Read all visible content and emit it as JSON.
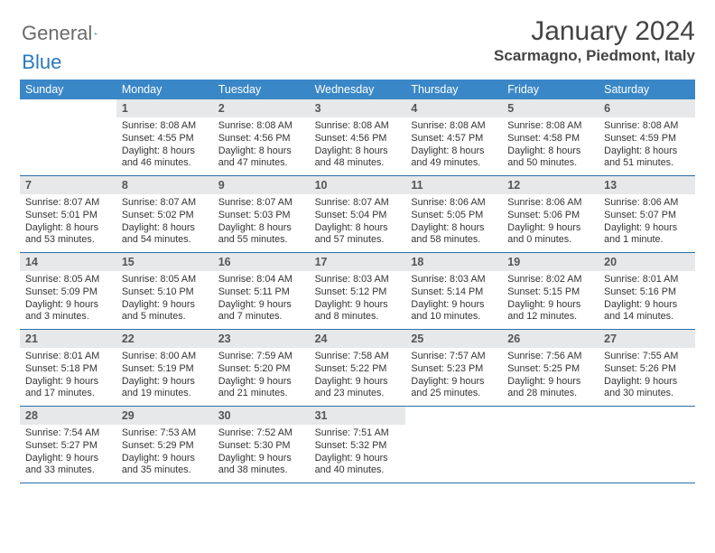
{
  "logo": {
    "textGray": "General",
    "textBlue": "Blue"
  },
  "title": "January 2024",
  "location": "Scarmagno, Piedmont, Italy",
  "colors": {
    "headerBlue": "#3a87c8",
    "borderBlue": "#2a6fa8",
    "dayBg": "#e7e8e9",
    "logoGray": "#6a6a6a",
    "logoBlue": "#2a7ab8"
  },
  "dayNames": [
    "Sunday",
    "Monday",
    "Tuesday",
    "Wednesday",
    "Thursday",
    "Friday",
    "Saturday"
  ],
  "weeks": [
    [
      {
        "n": "",
        "sr": "",
        "ss": "",
        "dl1": "",
        "dl2": ""
      },
      {
        "n": "1",
        "sr": "Sunrise: 8:08 AM",
        "ss": "Sunset: 4:55 PM",
        "dl1": "Daylight: 8 hours",
        "dl2": "and 46 minutes."
      },
      {
        "n": "2",
        "sr": "Sunrise: 8:08 AM",
        "ss": "Sunset: 4:56 PM",
        "dl1": "Daylight: 8 hours",
        "dl2": "and 47 minutes."
      },
      {
        "n": "3",
        "sr": "Sunrise: 8:08 AM",
        "ss": "Sunset: 4:56 PM",
        "dl1": "Daylight: 8 hours",
        "dl2": "and 48 minutes."
      },
      {
        "n": "4",
        "sr": "Sunrise: 8:08 AM",
        "ss": "Sunset: 4:57 PM",
        "dl1": "Daylight: 8 hours",
        "dl2": "and 49 minutes."
      },
      {
        "n": "5",
        "sr": "Sunrise: 8:08 AM",
        "ss": "Sunset: 4:58 PM",
        "dl1": "Daylight: 8 hours",
        "dl2": "and 50 minutes."
      },
      {
        "n": "6",
        "sr": "Sunrise: 8:08 AM",
        "ss": "Sunset: 4:59 PM",
        "dl1": "Daylight: 8 hours",
        "dl2": "and 51 minutes."
      }
    ],
    [
      {
        "n": "7",
        "sr": "Sunrise: 8:07 AM",
        "ss": "Sunset: 5:01 PM",
        "dl1": "Daylight: 8 hours",
        "dl2": "and 53 minutes."
      },
      {
        "n": "8",
        "sr": "Sunrise: 8:07 AM",
        "ss": "Sunset: 5:02 PM",
        "dl1": "Daylight: 8 hours",
        "dl2": "and 54 minutes."
      },
      {
        "n": "9",
        "sr": "Sunrise: 8:07 AM",
        "ss": "Sunset: 5:03 PM",
        "dl1": "Daylight: 8 hours",
        "dl2": "and 55 minutes."
      },
      {
        "n": "10",
        "sr": "Sunrise: 8:07 AM",
        "ss": "Sunset: 5:04 PM",
        "dl1": "Daylight: 8 hours",
        "dl2": "and 57 minutes."
      },
      {
        "n": "11",
        "sr": "Sunrise: 8:06 AM",
        "ss": "Sunset: 5:05 PM",
        "dl1": "Daylight: 8 hours",
        "dl2": "and 58 minutes."
      },
      {
        "n": "12",
        "sr": "Sunrise: 8:06 AM",
        "ss": "Sunset: 5:06 PM",
        "dl1": "Daylight: 9 hours",
        "dl2": "and 0 minutes."
      },
      {
        "n": "13",
        "sr": "Sunrise: 8:06 AM",
        "ss": "Sunset: 5:07 PM",
        "dl1": "Daylight: 9 hours",
        "dl2": "and 1 minute."
      }
    ],
    [
      {
        "n": "14",
        "sr": "Sunrise: 8:05 AM",
        "ss": "Sunset: 5:09 PM",
        "dl1": "Daylight: 9 hours",
        "dl2": "and 3 minutes."
      },
      {
        "n": "15",
        "sr": "Sunrise: 8:05 AM",
        "ss": "Sunset: 5:10 PM",
        "dl1": "Daylight: 9 hours",
        "dl2": "and 5 minutes."
      },
      {
        "n": "16",
        "sr": "Sunrise: 8:04 AM",
        "ss": "Sunset: 5:11 PM",
        "dl1": "Daylight: 9 hours",
        "dl2": "and 7 minutes."
      },
      {
        "n": "17",
        "sr": "Sunrise: 8:03 AM",
        "ss": "Sunset: 5:12 PM",
        "dl1": "Daylight: 9 hours",
        "dl2": "and 8 minutes."
      },
      {
        "n": "18",
        "sr": "Sunrise: 8:03 AM",
        "ss": "Sunset: 5:14 PM",
        "dl1": "Daylight: 9 hours",
        "dl2": "and 10 minutes."
      },
      {
        "n": "19",
        "sr": "Sunrise: 8:02 AM",
        "ss": "Sunset: 5:15 PM",
        "dl1": "Daylight: 9 hours",
        "dl2": "and 12 minutes."
      },
      {
        "n": "20",
        "sr": "Sunrise: 8:01 AM",
        "ss": "Sunset: 5:16 PM",
        "dl1": "Daylight: 9 hours",
        "dl2": "and 14 minutes."
      }
    ],
    [
      {
        "n": "21",
        "sr": "Sunrise: 8:01 AM",
        "ss": "Sunset: 5:18 PM",
        "dl1": "Daylight: 9 hours",
        "dl2": "and 17 minutes."
      },
      {
        "n": "22",
        "sr": "Sunrise: 8:00 AM",
        "ss": "Sunset: 5:19 PM",
        "dl1": "Daylight: 9 hours",
        "dl2": "and 19 minutes."
      },
      {
        "n": "23",
        "sr": "Sunrise: 7:59 AM",
        "ss": "Sunset: 5:20 PM",
        "dl1": "Daylight: 9 hours",
        "dl2": "and 21 minutes."
      },
      {
        "n": "24",
        "sr": "Sunrise: 7:58 AM",
        "ss": "Sunset: 5:22 PM",
        "dl1": "Daylight: 9 hours",
        "dl2": "and 23 minutes."
      },
      {
        "n": "25",
        "sr": "Sunrise: 7:57 AM",
        "ss": "Sunset: 5:23 PM",
        "dl1": "Daylight: 9 hours",
        "dl2": "and 25 minutes."
      },
      {
        "n": "26",
        "sr": "Sunrise: 7:56 AM",
        "ss": "Sunset: 5:25 PM",
        "dl1": "Daylight: 9 hours",
        "dl2": "and 28 minutes."
      },
      {
        "n": "27",
        "sr": "Sunrise: 7:55 AM",
        "ss": "Sunset: 5:26 PM",
        "dl1": "Daylight: 9 hours",
        "dl2": "and 30 minutes."
      }
    ],
    [
      {
        "n": "28",
        "sr": "Sunrise: 7:54 AM",
        "ss": "Sunset: 5:27 PM",
        "dl1": "Daylight: 9 hours",
        "dl2": "and 33 minutes."
      },
      {
        "n": "29",
        "sr": "Sunrise: 7:53 AM",
        "ss": "Sunset: 5:29 PM",
        "dl1": "Daylight: 9 hours",
        "dl2": "and 35 minutes."
      },
      {
        "n": "30",
        "sr": "Sunrise: 7:52 AM",
        "ss": "Sunset: 5:30 PM",
        "dl1": "Daylight: 9 hours",
        "dl2": "and 38 minutes."
      },
      {
        "n": "31",
        "sr": "Sunrise: 7:51 AM",
        "ss": "Sunset: 5:32 PM",
        "dl1": "Daylight: 9 hours",
        "dl2": "and 40 minutes."
      },
      {
        "n": "",
        "sr": "",
        "ss": "",
        "dl1": "",
        "dl2": ""
      },
      {
        "n": "",
        "sr": "",
        "ss": "",
        "dl1": "",
        "dl2": ""
      },
      {
        "n": "",
        "sr": "",
        "ss": "",
        "dl1": "",
        "dl2": ""
      }
    ]
  ]
}
